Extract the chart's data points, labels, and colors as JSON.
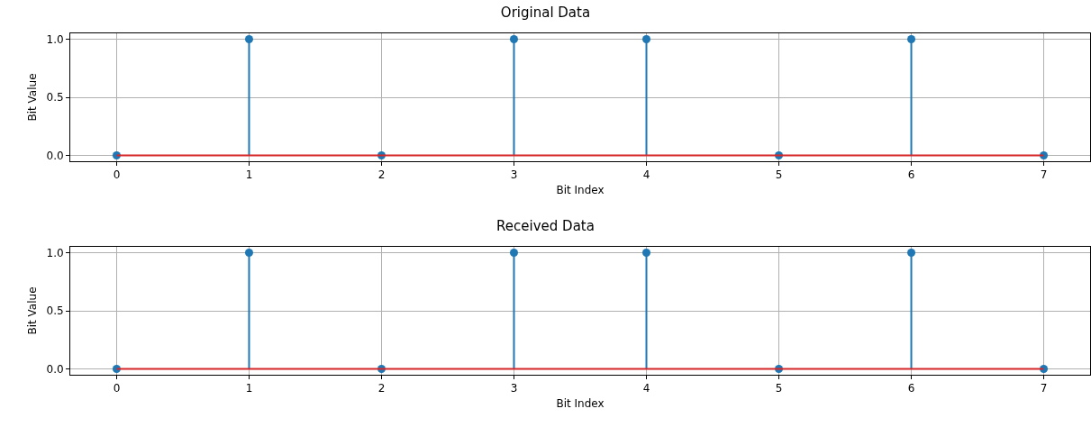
{
  "chart_data": [
    {
      "type": "lollipop",
      "title": "Original Data",
      "xlabel": "Bit Index",
      "ylabel": "Bit Value",
      "x": [
        0,
        1,
        2,
        3,
        4,
        5,
        6,
        7
      ],
      "series": [
        {
          "color": "#1f77b4",
          "values": [
            0,
            1,
            0,
            1,
            1,
            0,
            1,
            0
          ]
        }
      ],
      "xlim": [
        -0.35,
        7.35
      ],
      "xticks": [
        0,
        1,
        2,
        3,
        4,
        5,
        6,
        7
      ],
      "ylim": [
        -0.05,
        1.05
      ],
      "yticks": [
        {
          "value": 0,
          "label": "0.0"
        },
        {
          "value": 0.5,
          "label": "0.5"
        },
        {
          "value": 1,
          "label": "1.0"
        }
      ],
      "grid": true,
      "marker": "circle",
      "ref_lines": [
        {
          "axis": "y",
          "value": 0,
          "color": "#d62728"
        }
      ]
    },
    {
      "type": "lollipop",
      "title": "Received Data",
      "xlabel": "Bit Index",
      "ylabel": "Bit Value",
      "x": [
        0,
        1,
        2,
        3,
        4,
        5,
        6,
        7
      ],
      "series": [
        {
          "color": "#1f77b4",
          "values": [
            0,
            1,
            0,
            1,
            1,
            0,
            1,
            0
          ]
        }
      ],
      "xlim": [
        -0.35,
        7.35
      ],
      "xticks": [
        0,
        1,
        2,
        3,
        4,
        5,
        6,
        7
      ],
      "ylim": [
        -0.05,
        1.05
      ],
      "yticks": [
        {
          "value": 0,
          "label": "0.0"
        },
        {
          "value": 0.5,
          "label": "0.5"
        },
        {
          "value": 1,
          "label": "1.0"
        }
      ],
      "grid": true,
      "marker": "circle",
      "ref_lines": [
        {
          "axis": "y",
          "value": 0,
          "color": "#d62728"
        }
      ]
    }
  ]
}
